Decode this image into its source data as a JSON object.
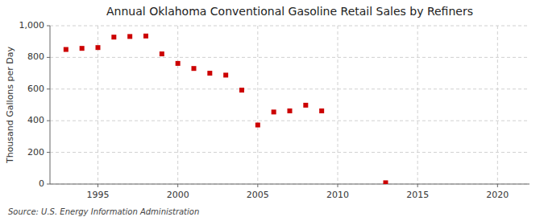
{
  "chart_data": {
    "type": "scatter",
    "title": "Annual Oklahoma Conventional Gasoline Retail Sales by Refiners",
    "y_label": "Thousand Gallons per Day",
    "source": "Source: U.S. Energy Information Administration",
    "x": [
      1993,
      1994,
      1995,
      1996,
      1997,
      1998,
      1999,
      2000,
      2001,
      2002,
      2003,
      2004,
      2005,
      2006,
      2007,
      2008,
      2009,
      2013
    ],
    "values": [
      850,
      857,
      862,
      928,
      932,
      935,
      822,
      762,
      730,
      700,
      688,
      593,
      373,
      455,
      462,
      498,
      462,
      8
    ],
    "color": "#cc0000",
    "marker": "square",
    "xlim": [
      1992,
      2022
    ],
    "ylim": [
      0,
      1000
    ],
    "xticks": [
      1995,
      2000,
      2005,
      2010,
      2015,
      2020
    ],
    "yticks": [
      0,
      200,
      400,
      600,
      800,
      {
        "value": 1000,
        "label": "1,000"
      }
    ],
    "grid": true
  }
}
